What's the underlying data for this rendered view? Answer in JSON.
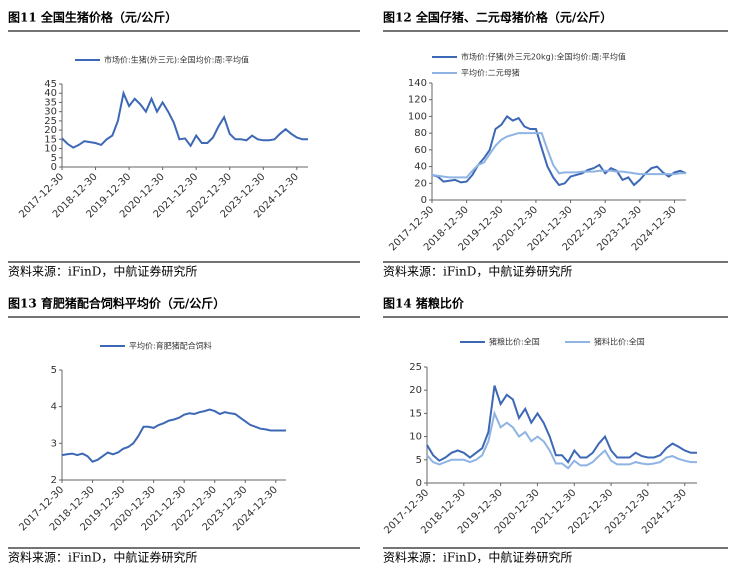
{
  "chart_data": [
    {
      "type": "line",
      "title": "图11  全国生猪价格（元/公斤）",
      "source": "资料来源：iFinD，中航证券研究所",
      "categories": [
        "2017-12-30",
        null,
        null,
        null,
        null,
        null,
        "2018-12-30",
        null,
        null,
        null,
        null,
        null,
        "2019-12-30",
        null,
        null,
        null,
        null,
        null,
        "2020-12-30",
        null,
        null,
        null,
        null,
        null,
        "2021-12-30",
        null,
        null,
        null,
        null,
        null,
        "2022-12-30",
        null,
        null,
        null,
        null,
        null,
        "2023-12-30",
        null,
        null,
        null,
        null,
        null,
        "2024-12-30",
        null,
        null
      ],
      "series": [
        {
          "name": "市场价:生猪(外三元):全国均价:周:平均值",
          "color": "#3d68b5",
          "values": [
            15.5,
            12.5,
            10.5,
            12,
            14,
            13.5,
            13,
            12,
            15,
            17,
            25,
            40,
            33,
            37,
            34,
            30,
            37,
            30,
            35,
            30,
            24,
            15,
            15.5,
            11.5,
            17,
            13,
            13,
            16,
            22,
            27,
            18,
            15,
            15,
            14.5,
            17,
            15,
            14.5,
            14.5,
            15,
            18,
            20.5,
            18,
            16,
            15,
            15
          ]
        }
      ],
      "ylim": [
        0,
        45
      ],
      "yticks": [
        0,
        5,
        10,
        15,
        20,
        25,
        30,
        35,
        40,
        45
      ]
    },
    {
      "type": "line",
      "title": "图12  全国仔猪、二元母猪价格（元/公斤）",
      "source": "资料来源：iFinD，中航证券研究所",
      "categories": [
        "2017-12-30",
        null,
        null,
        null,
        null,
        null,
        "2018-12-30",
        null,
        null,
        null,
        null,
        null,
        "2019-12-30",
        null,
        null,
        null,
        null,
        null,
        "2020-12-30",
        null,
        null,
        null,
        null,
        null,
        "2021-12-30",
        null,
        null,
        null,
        null,
        null,
        "2022-12-30",
        null,
        null,
        null,
        null,
        null,
        "2023-12-30",
        null,
        null,
        null,
        null,
        null,
        "2024-12-30",
        null,
        null
      ],
      "series": [
        {
          "name": "市场价:仔猪(外三元20kg):全国均价:周:平均值",
          "color": "#3d68b5",
          "values": [
            30,
            28,
            22,
            23,
            24,
            21,
            22,
            30,
            42,
            50,
            60,
            85,
            90,
            100,
            95,
            98,
            88,
            85,
            85,
            62,
            40,
            27,
            18,
            20,
            28,
            30,
            32,
            36,
            38,
            42,
            32,
            38,
            35,
            24,
            27,
            18,
            24,
            32,
            38,
            40,
            33,
            28,
            33,
            35,
            32
          ]
        },
        {
          "name": "平均价:二元母猪",
          "color": "#8fb4e3",
          "values": [
            30,
            29,
            28,
            27,
            27,
            27,
            27,
            35,
            42,
            45,
            55,
            65,
            72,
            76,
            78,
            80,
            80,
            80,
            80,
            80,
            60,
            42,
            32,
            33,
            33,
            33,
            34,
            34,
            34,
            35,
            35,
            35,
            34,
            34,
            33,
            32,
            31,
            31,
            31,
            31,
            31,
            31,
            31,
            32,
            32
          ]
        }
      ],
      "ylim": [
        0,
        140
      ],
      "yticks": [
        0,
        20,
        40,
        60,
        80,
        100,
        120,
        140
      ]
    },
    {
      "type": "line",
      "title": "图13  育肥猪配合饲料平均价（元/公斤）",
      "source": "资料来源：iFinD，中航证券研究所",
      "categories": [
        "2017-12-30",
        null,
        null,
        null,
        null,
        null,
        "2018-12-30",
        null,
        null,
        null,
        null,
        null,
        "2019-12-30",
        null,
        null,
        null,
        null,
        null,
        "2020-12-30",
        null,
        null,
        null,
        null,
        null,
        "2021-12-30",
        null,
        null,
        null,
        null,
        null,
        "2022-12-30",
        null,
        null,
        null,
        null,
        null,
        "2023-12-30",
        null,
        null,
        null,
        null,
        null,
        "2024-12-30",
        null,
        null
      ],
      "series": [
        {
          "name": "平均价:育肥猪配合饲料",
          "color": "#3d68b5",
          "values": [
            2.68,
            2.7,
            2.72,
            2.68,
            2.72,
            2.65,
            2.5,
            2.55,
            2.65,
            2.75,
            2.7,
            2.75,
            2.85,
            2.9,
            3.0,
            3.2,
            3.45,
            3.45,
            3.42,
            3.5,
            3.55,
            3.62,
            3.65,
            3.7,
            3.78,
            3.82,
            3.8,
            3.85,
            3.88,
            3.92,
            3.88,
            3.8,
            3.85,
            3.82,
            3.8,
            3.7,
            3.6,
            3.5,
            3.45,
            3.4,
            3.38,
            3.35,
            3.35,
            3.35,
            3.35
          ]
        }
      ],
      "ylim": [
        2,
        5
      ],
      "yticks": [
        2,
        3,
        4,
        5
      ]
    },
    {
      "type": "line",
      "title": "图14  猪粮比价",
      "source": "资料来源：iFinD，中航证券研究所",
      "categories": [
        "2017-12-30",
        null,
        null,
        null,
        null,
        null,
        "2018-12-30",
        null,
        null,
        null,
        null,
        null,
        "2019-12-30",
        null,
        null,
        null,
        null,
        null,
        "2020-12-30",
        null,
        null,
        null,
        null,
        null,
        "2021-12-30",
        null,
        null,
        null,
        null,
        null,
        "2022-12-30",
        null,
        null,
        null,
        null,
        null,
        "2023-12-30",
        null,
        null,
        null,
        null,
        null,
        "2024-12-30",
        null,
        null
      ],
      "series": [
        {
          "name": "猪粮比价:全国",
          "color": "#3d68b5",
          "values": [
            8.2,
            6,
            4.8,
            5.5,
            6.5,
            7,
            6.5,
            5.5,
            6.5,
            7.5,
            11,
            21,
            17,
            19,
            18,
            14,
            16,
            13,
            15,
            13,
            10,
            6,
            6,
            4.5,
            7,
            5.5,
            5.5,
            6.5,
            8.5,
            10,
            7,
            5.5,
            5.5,
            5.5,
            6.5,
            5.8,
            5.5,
            5.5,
            6,
            7.5,
            8.5,
            7.8,
            7,
            6.5,
            6.5
          ]
        },
        {
          "name": "猪料比价:全国",
          "color": "#8fb4e3",
          "values": [
            6,
            4.5,
            4,
            4.5,
            5,
            5,
            5,
            4.5,
            5,
            6,
            9,
            15,
            12,
            13,
            12,
            10,
            11,
            9,
            10,
            9,
            7,
            4.2,
            4.2,
            3.2,
            4.8,
            3.8,
            3.8,
            4.5,
            5.8,
            7,
            4.8,
            4,
            4,
            4,
            4.5,
            4.2,
            4,
            4.2,
            4.5,
            5.5,
            5.8,
            5.2,
            4.8,
            4.5,
            4.5
          ]
        }
      ],
      "ylim": [
        0,
        25
      ],
      "yticks": [
        0,
        5,
        10,
        15,
        20,
        25
      ]
    }
  ]
}
